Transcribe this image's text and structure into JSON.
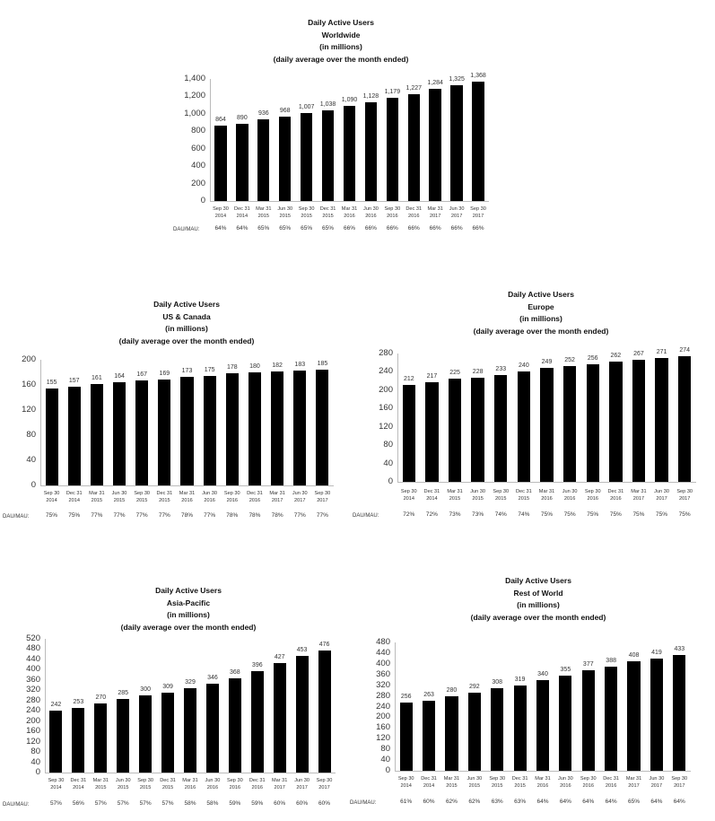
{
  "chart_data": [
    {
      "type": "bar",
      "title": [
        "Daily Active Users",
        "Worldwide",
        "(in millions)",
        "(daily average over the month ended)"
      ],
      "categories": [
        "Sep 30 2014",
        "Dec 31 2014",
        "Mar 31 2015",
        "Jun 30 2015",
        "Sep 30 2015",
        "Dec 31 2015",
        "Mar 31 2016",
        "Jun 30 2016",
        "Sep 30 2016",
        "Dec 31 2016",
        "Mar 31 2017",
        "Jun 30 2017",
        "Sep 30 2017"
      ],
      "values": [
        864,
        890,
        936,
        968,
        1007,
        1038,
        1090,
        1128,
        1179,
        1227,
        1284,
        1325,
        1368
      ],
      "data_labels": [
        "864",
        "890",
        "936",
        "968",
        "1,007",
        "1,038",
        "1,090",
        "1,128",
        "1,179",
        "1,227",
        "1,284",
        "1,325",
        "1,368"
      ],
      "ylim": [
        0,
        1400
      ],
      "yticks": [
        "0",
        "200",
        "400",
        "600",
        "800",
        "1,000",
        "1,200",
        "1,400"
      ],
      "row_label": "DAU/MAU:",
      "row_values": [
        "64%",
        "64%",
        "65%",
        "65%",
        "65%",
        "65%",
        "66%",
        "66%",
        "66%",
        "66%",
        "66%",
        "66%",
        "66%"
      ],
      "bar_color": "#000000",
      "grid": false
    },
    {
      "type": "bar",
      "title": [
        "Daily Active Users",
        "US & Canada",
        "(in millions)",
        "(daily average over the month ended)"
      ],
      "categories": [
        "Sep 30 2014",
        "Dec 31 2014",
        "Mar 31 2015",
        "Jun 30 2015",
        "Sep 30 2015",
        "Dec 31 2015",
        "Mar 31 2016",
        "Jun 30 2016",
        "Sep 30 2016",
        "Dec 31 2016",
        "Mar 31 2017",
        "Jun 30 2017",
        "Sep 30 2017"
      ],
      "values": [
        155,
        157,
        161,
        164,
        167,
        169,
        173,
        175,
        178,
        180,
        182,
        183,
        185
      ],
      "data_labels": [
        "155",
        "157",
        "161",
        "164",
        "167",
        "169",
        "173",
        "175",
        "178",
        "180",
        "182",
        "183",
        "185"
      ],
      "ylim": [
        0,
        200
      ],
      "yticks": [
        "0",
        "40",
        "80",
        "120",
        "160",
        "200"
      ],
      "row_label": "DAU/MAU:",
      "row_values": [
        "75%",
        "75%",
        "77%",
        "77%",
        "77%",
        "77%",
        "78%",
        "77%",
        "78%",
        "78%",
        "78%",
        "77%",
        "77%"
      ],
      "bar_color": "#000000",
      "grid": false
    },
    {
      "type": "bar",
      "title": [
        "Daily Active Users",
        "Europe",
        "(in millions)",
        "(daily average over the month ended)"
      ],
      "categories": [
        "Sep 30 2014",
        "Dec 31 2014",
        "Mar 31 2015",
        "Jun 30 2015",
        "Sep 30 2015",
        "Dec 31 2015",
        "Mar 31 2016",
        "Jun 30 2016",
        "Sep 30 2016",
        "Dec 31 2016",
        "Mar 31 2017",
        "Jun 30 2017",
        "Sep 30 2017"
      ],
      "values": [
        212,
        217,
        225,
        228,
        233,
        240,
        249,
        252,
        256,
        262,
        267,
        271,
        274
      ],
      "data_labels": [
        "212",
        "217",
        "225",
        "228",
        "233",
        "240",
        "249",
        "252",
        "256",
        "262",
        "267",
        "271",
        "274"
      ],
      "ylim": [
        0,
        280
      ],
      "yticks": [
        "0",
        "40",
        "80",
        "120",
        "160",
        "200",
        "240",
        "280"
      ],
      "row_label": "DAU/MAU:",
      "row_values": [
        "72%",
        "72%",
        "73%",
        "73%",
        "74%",
        "74%",
        "75%",
        "75%",
        "75%",
        "75%",
        "75%",
        "75%",
        "75%"
      ],
      "bar_color": "#000000",
      "grid": false
    },
    {
      "type": "bar",
      "title": [
        "Daily Active Users",
        "Asia-Pacific",
        "(in millions)",
        "(daily average over the month ended)"
      ],
      "categories": [
        "Sep 30 2014",
        "Dec 31 2014",
        "Mar 31 2015",
        "Jun 30 2015",
        "Sep 30 2015",
        "Dec 31 2015",
        "Mar 31 2016",
        "Jun 30 2016",
        "Sep 30 2016",
        "Dec 31 2016",
        "Mar 31 2017",
        "Jun 30 2017",
        "Sep 30 2017"
      ],
      "values": [
        242,
        253,
        270,
        285,
        300,
        309,
        329,
        346,
        368,
        396,
        427,
        453,
        476
      ],
      "data_labels": [
        "242",
        "253",
        "270",
        "285",
        "300",
        "309",
        "329",
        "346",
        "368",
        "396",
        "427",
        "453",
        "476"
      ],
      "ylim": [
        0,
        520
      ],
      "yticks": [
        "0",
        "40",
        "80",
        "120",
        "160",
        "200",
        "240",
        "280",
        "320",
        "360",
        "400",
        "440",
        "480",
        "520"
      ],
      "row_label": "DAU/MAU:",
      "row_values": [
        "57%",
        "56%",
        "57%",
        "57%",
        "57%",
        "57%",
        "58%",
        "58%",
        "59%",
        "59%",
        "60%",
        "60%",
        "60%"
      ],
      "bar_color": "#000000",
      "grid": false
    },
    {
      "type": "bar",
      "title": [
        "Daily Active Users",
        "Rest of World",
        "(in millions)",
        "(daily average over the month ended)"
      ],
      "categories": [
        "Sep 30 2014",
        "Dec 31 2014",
        "Mar 31 2015",
        "Jun 30 2015",
        "Sep 30 2015",
        "Dec 31 2015",
        "Mar 31 2016",
        "Jun 30 2016",
        "Sep 30 2016",
        "Dec 31 2016",
        "Mar 31 2017",
        "Jun 30 2017",
        "Sep 30 2017"
      ],
      "values": [
        256,
        263,
        280,
        292,
        308,
        319,
        340,
        355,
        377,
        388,
        408,
        419,
        433
      ],
      "data_labels": [
        "256",
        "263",
        "280",
        "292",
        "308",
        "319",
        "340",
        "355",
        "377",
        "388",
        "408",
        "419",
        "433"
      ],
      "ylim": [
        0,
        480
      ],
      "yticks": [
        "0",
        "40",
        "80",
        "120",
        "160",
        "200",
        "240",
        "280",
        "320",
        "360",
        "400",
        "440",
        "480"
      ],
      "row_label": "DAU/MAU:",
      "row_values": [
        "61%",
        "60%",
        "62%",
        "62%",
        "63%",
        "63%",
        "64%",
        "64%",
        "64%",
        "64%",
        "65%",
        "64%",
        "64%"
      ],
      "bar_color": "#000000",
      "grid": false
    }
  ]
}
